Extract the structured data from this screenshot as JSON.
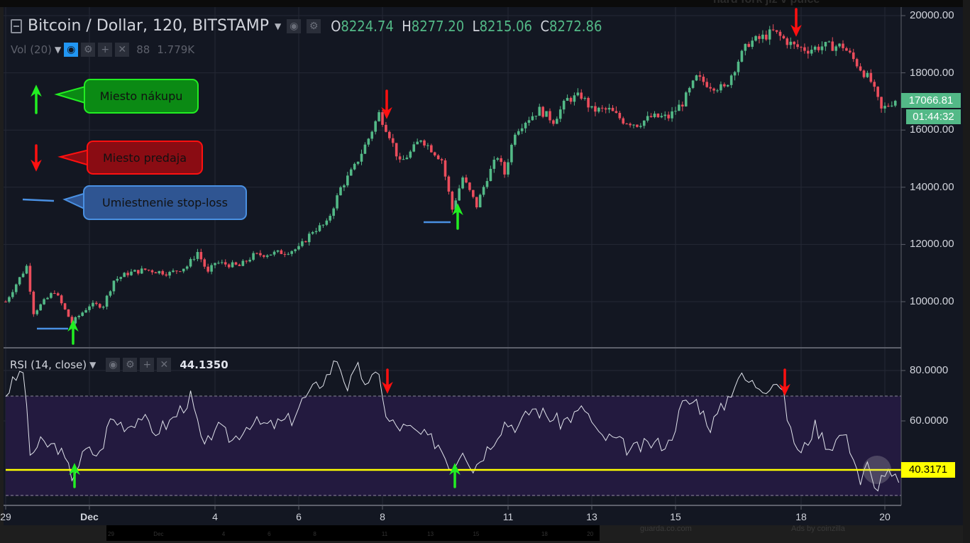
{
  "background_page": {
    "headline_fragment": "hard fork již v půlce",
    "footer_left": "guarda.co.com",
    "footer_right": "Ads by coinzilla"
  },
  "header": {
    "symbol": "Bitcoin / Dollar, 120, BITSTAMP",
    "ohlc": {
      "o_label": "O",
      "o": "8224.74",
      "h_label": "H",
      "h": "8277.20",
      "l_label": "L",
      "l": "8215.06",
      "c_label": "C",
      "c": "8272.86"
    }
  },
  "volume_legend": {
    "label": "Vol (20)",
    "value1": "88",
    "value2": "1.779K"
  },
  "rsi_legend": {
    "label": "RSI (14, close)",
    "value": "44.1350"
  },
  "annotations": {
    "buy": "Miesto nákupu",
    "sell": "Miesto predaja",
    "stoploss": "Umiestnenie stop-loss"
  },
  "price_tag": {
    "last": "17066.81",
    "countdown": "01:44:32"
  },
  "rsi_tag": "40.3171",
  "navigator_ticks": [
    "29",
    "Dec",
    "4",
    "6",
    "8",
    "11",
    "13",
    "15",
    "18",
    "20"
  ],
  "colors": {
    "up": "#53b987",
    "down": "#eb4d5c",
    "background": "#131722",
    "rsi_band": "#231a3f",
    "rsi_line": "#e0e3eb",
    "level": "#ffff00",
    "buy_arrow": "#22ee22",
    "sell_arrow": "#ff1010",
    "stoploss": "#4a90e2"
  },
  "chart_data": [
    {
      "type": "candlestick",
      "title": "Bitcoin / Dollar, 120, BITSTAMP",
      "interval": "120",
      "y_ticks": [
        "20000.00",
        "18000.00",
        "16000.00",
        "14000.00",
        "12000.00",
        "10000.00"
      ],
      "ylim": [
        8400,
        20400
      ],
      "x_ticks": [
        "29",
        "Dec",
        "4",
        "6",
        "8",
        "11",
        "13",
        "15",
        "18",
        "20"
      ],
      "grid": true,
      "close_keypoints": [
        [
          "Nov 29 00:00",
          10000
        ],
        [
          "Nov 29 12:00",
          11241
        ],
        [
          "Nov 29 16:00",
          9628
        ],
        [
          "Nov 30 04:00",
          10372
        ],
        [
          "Nov 30 14:00",
          9256
        ],
        [
          "Dec 1 00:00",
          9876
        ],
        [
          "Dec 1 08:00",
          9876
        ],
        [
          "Dec 1 14:00",
          10744
        ],
        [
          "Dec 1 22:00",
          10993
        ],
        [
          "Dec 2 08:00",
          11117
        ],
        [
          "Dec 2 22:00",
          10993
        ],
        [
          "Dec 3 08:00",
          11241
        ],
        [
          "Dec 3 14:00",
          11737
        ],
        [
          "Dec 3 20:00",
          10993
        ],
        [
          "Dec 4 00:00",
          11365
        ],
        [
          "Dec 4 14:00",
          11241
        ],
        [
          "Dec 4 22:00",
          11613
        ],
        [
          "Dec 5 16:00",
          11737
        ],
        [
          "Dec 6 00:00",
          11861
        ],
        [
          "Dec 6 08:00",
          12481
        ],
        [
          "Dec 6 16:00",
          12730
        ],
        [
          "Dec 7 00:00",
          13970
        ],
        [
          "Dec 7 08:00",
          14715
        ],
        [
          "Dec 7 16:00",
          15707
        ],
        [
          "Dec 7 22:00",
          16576
        ],
        [
          "Dec 8 04:00",
          15831
        ],
        [
          "Dec 8 10:00",
          14839
        ],
        [
          "Dec 8 16:00",
          15211
        ],
        [
          "Dec 8 22:00",
          15707
        ],
        [
          "Dec 9 04:00",
          15335
        ],
        [
          "Dec 9 10:00",
          14963
        ],
        [
          "Dec 9 16:00",
          13226
        ],
        [
          "Dec 9 22:00",
          14342
        ],
        [
          "Dec 10 06:00",
          13350
        ],
        [
          "Dec 10 12:00",
          14342
        ],
        [
          "Dec 10 18:00",
          15087
        ],
        [
          "Dec 10 22:00",
          14467
        ],
        [
          "Dec 11 04:00",
          15955
        ],
        [
          "Dec 11 10:00",
          16328
        ],
        [
          "Dec 11 18:00",
          16700
        ],
        [
          "Dec 12 02:00",
          16328
        ],
        [
          "Dec 12 10:00",
          17072
        ],
        [
          "Dec 12 18:00",
          17196
        ],
        [
          "Dec 13 00:00",
          16700
        ],
        [
          "Dec 13 10:00",
          16700
        ],
        [
          "Dec 13 18:00",
          16328
        ],
        [
          "Dec 14 02:00",
          16203
        ],
        [
          "Dec 14 10:00",
          16452
        ],
        [
          "Dec 14 20:00",
          16452
        ],
        [
          "Dec 15 04:00",
          16948
        ],
        [
          "Dec 15 12:00",
          17816
        ],
        [
          "Dec 15 20:00",
          17568
        ],
        [
          "Dec 16 04:00",
          17444
        ],
        [
          "Dec 16 12:00",
          18437
        ],
        [
          "Dec 16 18:00",
          19057
        ],
        [
          "Dec 17 00:00",
          19181
        ],
        [
          "Dec 17 08:00",
          19429
        ],
        [
          "Dec 17 14:00",
          19181
        ],
        [
          "Dec 17 20:00",
          18933
        ],
        [
          "Dec 18 04:00",
          18809
        ],
        [
          "Dec 18 12:00",
          18933
        ],
        [
          "Dec 19 00:00",
          18933
        ],
        [
          "Dec 19 08:00",
          18313
        ],
        [
          "Dec 19 16:00",
          17692
        ],
        [
          "Dec 19 22:00",
          16700
        ],
        [
          "Dec 20 06:00",
          17066.81
        ]
      ],
      "last_price": 17066.81
    },
    {
      "type": "line",
      "title": "RSI (14, close)",
      "y_ticks": [
        "80.0000",
        "60.0000"
      ],
      "ylim": [
        26.5,
        88.5
      ],
      "band": [
        30,
        70
      ],
      "level": 40.3171,
      "points": [
        [
          "Nov 29 00:00",
          70.7
        ],
        [
          "Nov 29 04:00",
          74.9
        ],
        [
          "Nov 29 10:00",
          80.6
        ],
        [
          "Nov 29 14:00",
          46.8
        ],
        [
          "Nov 29 20:00",
          51
        ],
        [
          "Nov 30 06:00",
          49.6
        ],
        [
          "Nov 30 14:00",
          38.3
        ],
        [
          "Nov 30 22:00",
          48.2
        ],
        [
          "Dec 1 06:00",
          46.8
        ],
        [
          "Dec 1 12:00",
          60.8
        ],
        [
          "Dec 1 22:00",
          58
        ],
        [
          "Dec 2 06:00",
          62.3
        ],
        [
          "Dec 2 12:00",
          55.2
        ],
        [
          "Dec 2 22:00",
          59.4
        ],
        [
          "Dec 3 10:00",
          69.3
        ],
        [
          "Dec 3 18:00",
          48.2
        ],
        [
          "Dec 4 00:00",
          58
        ],
        [
          "Dec 4 10:00",
          52.4
        ],
        [
          "Dec 4 20:00",
          59.4
        ],
        [
          "Dec 5 08:00",
          58
        ],
        [
          "Dec 5 20:00",
          60.8
        ],
        [
          "Dec 6 02:00",
          67.9
        ],
        [
          "Dec 6 10:00",
          73.5
        ],
        [
          "Dec 6 16:00",
          77.7
        ],
        [
          "Dec 6 22:00",
          84.8
        ],
        [
          "Dec 7 04:00",
          73.5
        ],
        [
          "Dec 7 10:00",
          80.6
        ],
        [
          "Dec 7 16:00",
          73.5
        ],
        [
          "Dec 7 22:00",
          80.6
        ],
        [
          "Dec 8 02:00",
          60.8
        ],
        [
          "Dec 8 08:00",
          58
        ],
        [
          "Dec 8 16:00",
          56.6
        ],
        [
          "Dec 9 00:00",
          53.8
        ],
        [
          "Dec 9 08:00",
          51
        ],
        [
          "Dec 9 16:00",
          41.1
        ],
        [
          "Dec 9 22:00",
          49.6
        ],
        [
          "Dec 10 04:00",
          41.1
        ],
        [
          "Dec 10 14:00",
          51
        ],
        [
          "Dec 10 22:00",
          59.4
        ],
        [
          "Dec 11 06:00",
          58
        ],
        [
          "Dec 11 14:00",
          65.1
        ],
        [
          "Dec 11 22:00",
          62.3
        ],
        [
          "Dec 12 06:00",
          59.4
        ],
        [
          "Dec 12 14:00",
          62.3
        ],
        [
          "Dec 12 20:00",
          65.1
        ],
        [
          "Dec 13 04:00",
          53.8
        ],
        [
          "Dec 13 14:00",
          52.4
        ],
        [
          "Dec 13 22:00",
          48.2
        ],
        [
          "Dec 14 10:00",
          51
        ],
        [
          "Dec 14 20:00",
          51
        ],
        [
          "Dec 15 04:00",
          66.5
        ],
        [
          "Dec 15 12:00",
          67.9
        ],
        [
          "Dec 15 20:00",
          58
        ],
        [
          "Dec 16 04:00",
          66.5
        ],
        [
          "Dec 16 12:00",
          77.7
        ],
        [
          "Dec 16 20:00",
          74.9
        ],
        [
          "Dec 17 04:00",
          73.5
        ],
        [
          "Dec 17 10:00",
          76.3
        ],
        [
          "Dec 17 14:00",
          69.3
        ],
        [
          "Dec 17 18:00",
          55.2
        ],
        [
          "Dec 18 00:00",
          46.8
        ],
        [
          "Dec 18 08:00",
          58
        ],
        [
          "Dec 18 16:00",
          49.6
        ],
        [
          "Dec 19 00:00",
          55.2
        ],
        [
          "Dec 19 06:00",
          46.8
        ],
        [
          "Dec 19 10:00",
          35.5
        ],
        [
          "Dec 19 14:00",
          42.5
        ],
        [
          "Dec 19 18:00",
          32.7
        ],
        [
          "Dec 20 00:00",
          39.7
        ],
        [
          "Dec 20 08:00",
          35.5
        ]
      ]
    }
  ]
}
